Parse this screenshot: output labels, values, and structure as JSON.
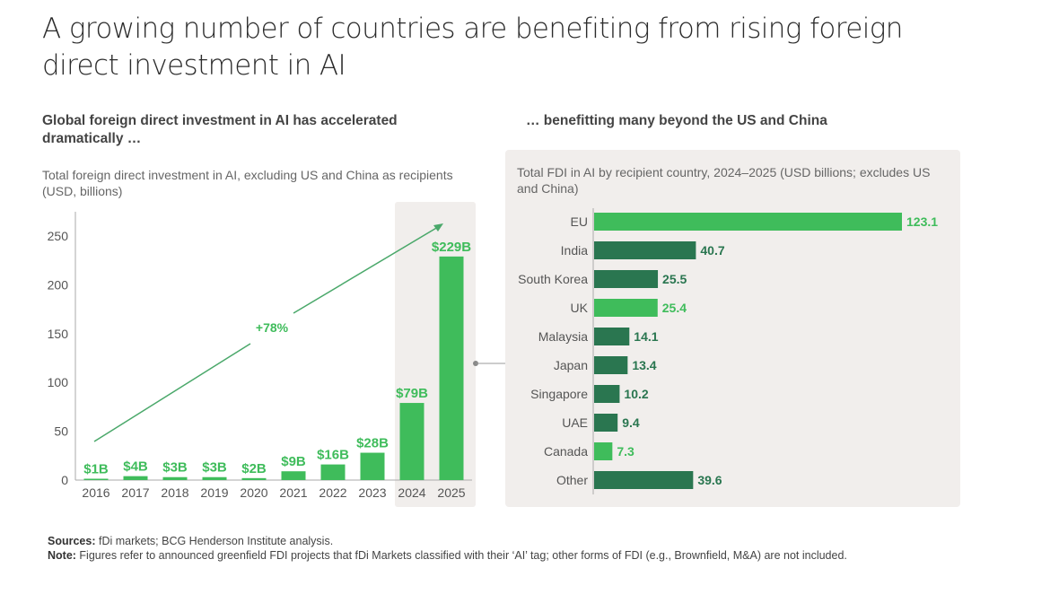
{
  "title": "A growing number of countries are benefiting from rising foreign direct investment in AI",
  "left": {
    "subtitle": "Global foreign direct investment in AI has accelerated dramatically …",
    "description": "Total foreign direct investment in AI, excluding US and China as recipients (USD, billions)",
    "growth_annotation": "+78%"
  },
  "right": {
    "subtitle": "… benefitting many beyond the US and China",
    "description": "Total FDI in AI by recipient country, 2024–2025 (USD billions; excludes US and China)"
  },
  "footer": {
    "sources_label": "Sources:",
    "sources_text": " fDi markets; BCG Henderson Institute analysis.",
    "note_label": "Note:",
    "note_text": " Figures refer to announced greenfield FDI projects that fDi Markets classified with their ‘AI’ tag; other forms of FDI (e.g., Brownfield, M&A) are not included."
  },
  "colors": {
    "bright_green": "#3fbc5b",
    "dark_green": "#2a7650",
    "highlight_panel": "#f1eeec",
    "axis": "#aaaaaa",
    "arrow": "#4aa86a"
  },
  "chart_data": [
    {
      "type": "bar",
      "title": "Global foreign direct investment in AI has accelerated dramatically …",
      "ylabel": "Total foreign direct investment in AI, excluding US and China as recipients (USD, billions)",
      "xlabel": "",
      "categories": [
        "2016",
        "2017",
        "2018",
        "2019",
        "2020",
        "2021",
        "2022",
        "2023",
        "2024",
        "2025"
      ],
      "values": [
        1,
        4,
        3,
        3,
        2,
        9,
        16,
        28,
        79,
        229
      ],
      "data_labels": [
        "$1B",
        "$4B",
        "$3B",
        "$3B",
        "$2B",
        "$9B",
        "$16B",
        "$28B",
        "$79B",
        "$229B"
      ],
      "highlighted_categories": [
        "2024",
        "2025"
      ],
      "ylim": [
        0,
        250
      ],
      "yticks": [
        0,
        50,
        100,
        150,
        200,
        250
      ],
      "grid": false,
      "annotation": {
        "text": "+78%",
        "type": "trend-arrow",
        "from": "2016",
        "to": "2025"
      }
    },
    {
      "type": "bar",
      "orientation": "horizontal",
      "title": "… benefitting many beyond the US and China",
      "subtitle": "Total FDI in AI by recipient country, 2024–2025 (USD billions; excludes US and China)",
      "categories": [
        "EU",
        "India",
        "South Korea",
        "UK",
        "Malaysia",
        "Japan",
        "Singapore",
        "UAE",
        "Canada",
        "Other"
      ],
      "values": [
        123.1,
        40.7,
        25.5,
        25.4,
        14.1,
        13.4,
        10.2,
        9.4,
        7.3,
        39.6
      ],
      "data_labels": [
        "123.1",
        "40.7",
        "25.5",
        "25.4",
        "14.1",
        "13.4",
        "10.2",
        "9.4",
        "7.3",
        "39.6"
      ],
      "bar_colors": [
        "bright",
        "dark",
        "dark",
        "bright",
        "dark",
        "dark",
        "dark",
        "dark",
        "bright",
        "dark"
      ],
      "xlim": [
        0,
        125
      ],
      "grid": false
    }
  ]
}
